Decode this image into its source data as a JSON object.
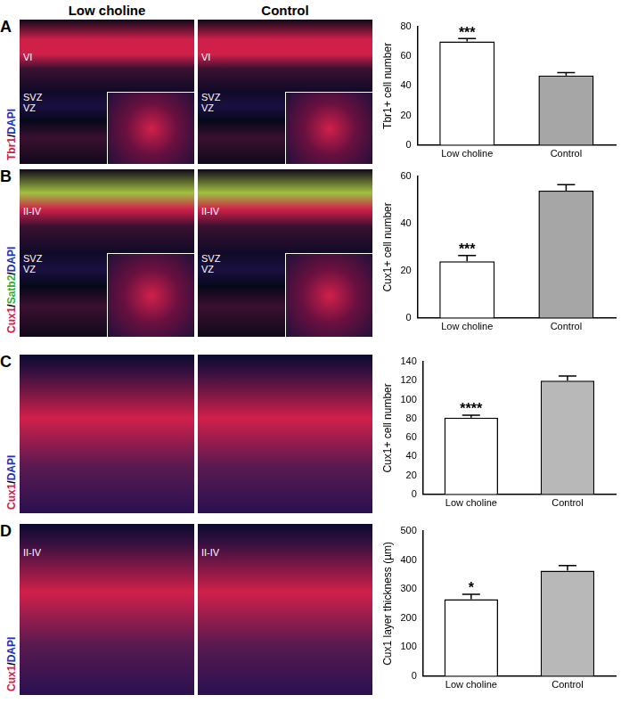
{
  "column_headers": [
    "Low choline",
    "Control"
  ],
  "panels": [
    {
      "letter": "A",
      "stain": [
        {
          "text": "Tbr1",
          "color": "#d0204a"
        },
        {
          "text": "/",
          "color": "#000000"
        },
        {
          "text": "DAPI",
          "color": "#2030c0"
        }
      ],
      "images": [
        {
          "layer": "VI",
          "zones": [
            "SVZ",
            "VZ"
          ]
        },
        {
          "layer": "VI",
          "zones": [
            "SVZ",
            "VZ"
          ]
        }
      ]
    },
    {
      "letter": "B",
      "stain": [
        {
          "text": "Cux1",
          "color": "#d0204a"
        },
        {
          "text": "/",
          "color": "#000000"
        },
        {
          "text": "Satb2",
          "color": "#30b030"
        },
        {
          "text": "/",
          "color": "#000000"
        },
        {
          "text": "DAPI",
          "color": "#2030c0"
        }
      ],
      "images": [
        {
          "layer": "II-IV",
          "zones": [
            "SVZ",
            "VZ"
          ]
        },
        {
          "layer": "II-IV",
          "zones": [
            "SVZ",
            "VZ"
          ]
        }
      ]
    },
    {
      "letter": "C",
      "stain": [
        {
          "text": "Cux1",
          "color": "#d0204a"
        },
        {
          "text": "/",
          "color": "#000000"
        },
        {
          "text": "DAPI",
          "color": "#2030c0"
        }
      ],
      "images": [
        {
          "layer": null,
          "zones": []
        },
        {
          "layer": null,
          "zones": []
        }
      ]
    },
    {
      "letter": "D",
      "stain": [
        {
          "text": "Cux1",
          "color": "#d0204a"
        },
        {
          "text": "/",
          "color": "#000000"
        },
        {
          "text": "DAPI",
          "color": "#2030c0"
        }
      ],
      "images": [
        {
          "layer": "II-IV",
          "zones": []
        },
        {
          "layer": "II-IV",
          "zones": []
        }
      ]
    }
  ],
  "chart_data": [
    {
      "type": "bar",
      "categories": [
        "Low choline",
        "Control"
      ],
      "values": [
        70,
        47
      ],
      "errors": [
        2,
        2
      ],
      "colors": [
        "#ffffff",
        "#a6a6a6"
      ],
      "y_label": "Tbr1+ cell number",
      "ylim": [
        0,
        80
      ],
      "yticks": [
        0,
        20,
        40,
        60,
        80
      ],
      "grid": false,
      "annotations": [
        {
          "category": "Low choline",
          "text": "***"
        }
      ]
    },
    {
      "type": "bar",
      "categories": [
        "Low choline",
        "Control"
      ],
      "values": [
        24,
        54
      ],
      "errors": [
        2.5,
        2.5
      ],
      "colors": [
        "#ffffff",
        "#a6a6a6"
      ],
      "y_label": "Cux1+ cell number",
      "ylim": [
        0,
        60
      ],
      "yticks": [
        0,
        20,
        40,
        60
      ],
      "grid": false,
      "annotations": [
        {
          "category": "Low choline",
          "text": "***"
        }
      ]
    },
    {
      "type": "bar",
      "categories": [
        "Low choline",
        "Control"
      ],
      "values": [
        81,
        120
      ],
      "errors": [
        2.5,
        5
      ],
      "colors": [
        "#ffffff",
        "#b8b8b8"
      ],
      "y_label": "Cux1+ cell number",
      "ylim": [
        0,
        140
      ],
      "yticks": [
        0,
        20,
        40,
        60,
        80,
        100,
        120,
        140
      ],
      "grid": false,
      "annotations": [
        {
          "category": "Low choline",
          "text": "****"
        }
      ]
    },
    {
      "type": "bar",
      "categories": [
        "Low choline",
        "Control"
      ],
      "values": [
        265,
        363
      ],
      "errors": [
        17,
        18
      ],
      "colors": [
        "#ffffff",
        "#b8b8b8"
      ],
      "y_label": "Cux1 layer thickness (µm)",
      "ylim": [
        0,
        500
      ],
      "yticks": [
        0,
        100,
        200,
        300,
        400,
        500
      ],
      "grid": false,
      "annotations": [
        {
          "category": "Low choline",
          "text": "*"
        }
      ]
    }
  ]
}
